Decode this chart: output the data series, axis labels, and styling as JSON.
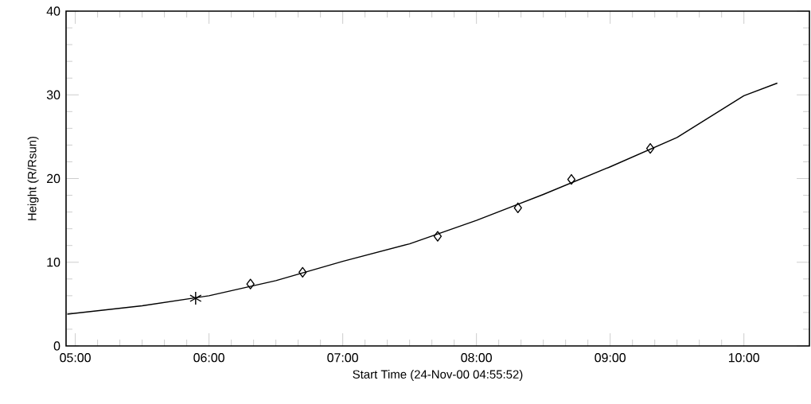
{
  "chart_data": {
    "type": "scatter",
    "xlabel": "Start Time (24-Nov-00 04:55:52)",
    "ylabel": "Height (R/Rsun)",
    "xlim": [
      4.931,
      10.49
    ],
    "ylim": [
      0,
      40
    ],
    "xticks": [
      {
        "value": 5,
        "label": "05:00"
      },
      {
        "value": 6,
        "label": "06:00"
      },
      {
        "value": 7,
        "label": "07:00"
      },
      {
        "value": 8,
        "label": "08:00"
      },
      {
        "value": 9,
        "label": "09:00"
      },
      {
        "value": 10,
        "label": "10:00"
      }
    ],
    "yticks": [
      0,
      10,
      20,
      30,
      40
    ],
    "grid": false,
    "series": [
      {
        "type": "line",
        "color": "#000000",
        "marker": "none",
        "line_style": "solid",
        "x": [
          4.94,
          5.5,
          6.0,
          6.5,
          7.0,
          7.5,
          8.0,
          8.5,
          9.0,
          9.5,
          10.0,
          10.25
        ],
        "values": [
          3.8,
          4.8,
          6.0,
          7.8,
          10.1,
          12.2,
          15.0,
          18.1,
          21.4,
          24.9,
          29.9,
          31.4
        ]
      },
      {
        "color": "#000000",
        "marker": "cross",
        "x": [
          5.9
        ],
        "values": [
          5.7
        ]
      },
      {
        "color": "#000000",
        "marker": "diamond",
        "x": [
          6.31,
          6.7,
          7.71,
          8.31,
          8.71,
          9.3
        ],
        "values": [
          7.4,
          8.8,
          13.1,
          16.5,
          19.9,
          23.6
        ]
      }
    ]
  }
}
